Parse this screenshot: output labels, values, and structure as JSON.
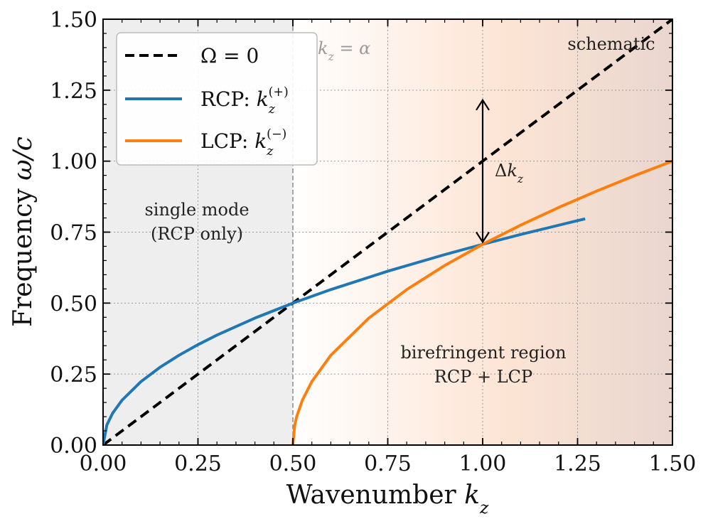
{
  "chart_data": {
    "type": "line",
    "xlabel": "Wavenumber k_z",
    "ylabel": "Frequency ω/c",
    "xlim": [
      0,
      1.5
    ],
    "ylim": [
      0,
      1.5
    ],
    "x_ticks": [
      0.0,
      0.25,
      0.5,
      0.75,
      1.0,
      1.25,
      1.5
    ],
    "y_ticks": [
      0.0,
      0.25,
      0.5,
      0.75,
      1.0,
      1.25,
      1.5
    ],
    "x_tick_labels": [
      "0.00",
      "0.25",
      "0.50",
      "0.75",
      "1.00",
      "1.25",
      "1.50"
    ],
    "y_tick_labels": [
      "0.00",
      "0.25",
      "0.50",
      "0.75",
      "1.00",
      "1.25",
      "1.50"
    ],
    "grid": true,
    "legend_position": "top-left",
    "series": [
      {
        "name": "Ω = 0",
        "style": "dashed",
        "color": "#000000",
        "x": [
          0.0,
          0.25,
          0.5,
          0.75,
          1.0,
          1.25,
          1.5
        ],
        "y": [
          0.0,
          0.25,
          0.5,
          0.75,
          1.0,
          1.25,
          1.5
        ]
      },
      {
        "name": "RCP: k_z^(+)",
        "style": "solid",
        "color": "#1f77b4",
        "x": [
          0.0,
          0.01,
          0.025,
          0.05,
          0.1,
          0.15,
          0.2,
          0.25,
          0.3,
          0.4,
          0.5,
          0.6,
          0.75,
          0.9,
          1.0,
          1.1,
          1.25,
          1.27
        ],
        "y": [
          0.0,
          0.0707,
          0.1118,
          0.1581,
          0.2236,
          0.2739,
          0.3162,
          0.3536,
          0.3873,
          0.4472,
          0.5,
          0.5477,
          0.6124,
          0.6708,
          0.7071,
          0.7416,
          0.7906,
          0.7969
        ]
      },
      {
        "name": "LCP: k_z^(−)",
        "style": "solid",
        "color": "#ff7f0e",
        "x": [
          0.5,
          0.505,
          0.51,
          0.525,
          0.55,
          0.6,
          0.7,
          0.8,
          0.9,
          1.0,
          1.1,
          1.2,
          1.3,
          1.4,
          1.5
        ],
        "y": [
          0.0,
          0.0707,
          0.1,
          0.1581,
          0.2236,
          0.3162,
          0.4472,
          0.5477,
          0.6325,
          0.7071,
          0.7746,
          0.8367,
          0.8944,
          0.9487,
          1.0
        ]
      }
    ],
    "annotations": {
      "kz_alpha": "k_z = α",
      "schematic": "schematic",
      "single_mode_line1": "single mode",
      "single_mode_line2": "(RCP only)",
      "birefringent_line1": "birefringent region",
      "birefringent_line2": "RCP + LCP",
      "delta_kz": "Δk_z"
    },
    "alpha": 0.5,
    "arrow_at_x": 1.0,
    "colors": {
      "rcp": "#1f77b4",
      "lcp": "#ff7f0e",
      "single_mode_shade": "#eeeeee",
      "birefringent_shade_start": "#fff6ee",
      "birefringent_shade_end": "#e9d6cf"
    }
  }
}
